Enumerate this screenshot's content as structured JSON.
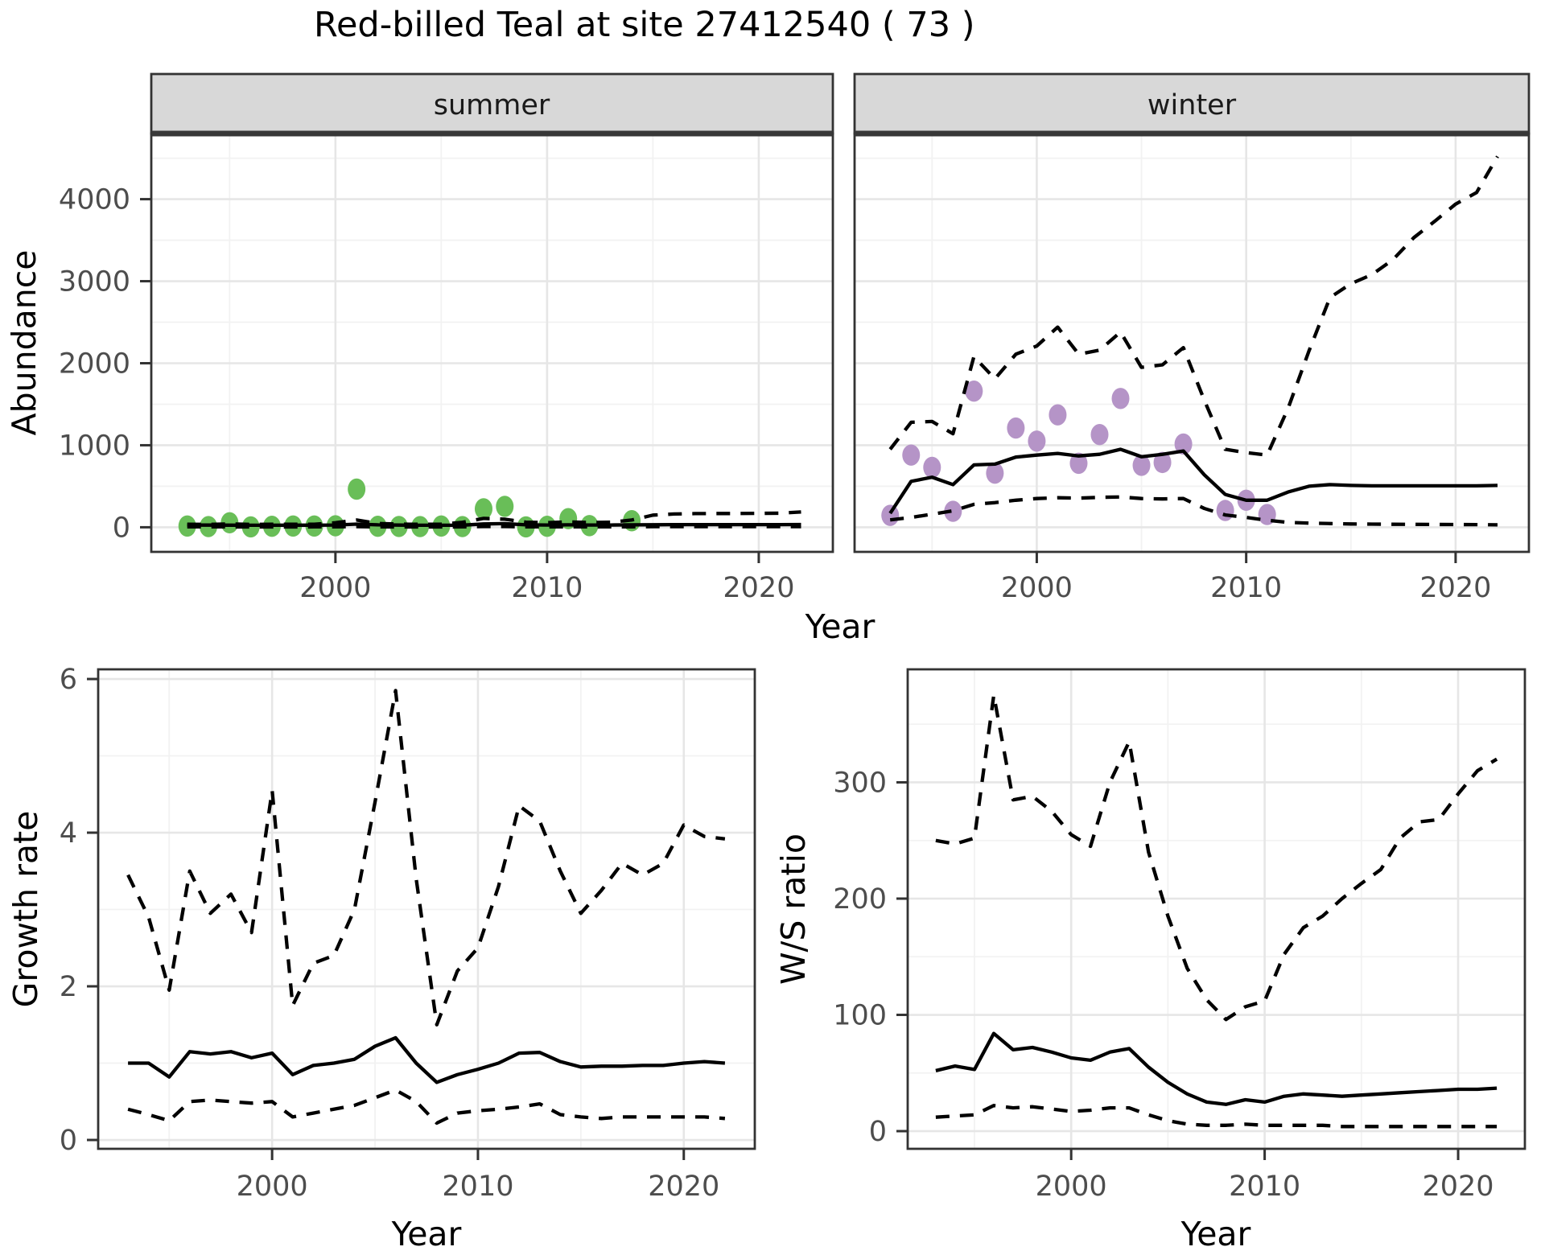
{
  "title": "Red-billed Teal at site 27412540 ( 73 )",
  "facets": [
    "summer",
    "winter"
  ],
  "axes": {
    "abundance_label": "Abundance",
    "growth_label": "Growth rate",
    "ws_label": "W/S ratio",
    "year_label_top": "Year",
    "year_label_bottom_left": "Year",
    "year_label_bottom_right": "Year"
  },
  "colors": {
    "summer_point": "#69BE58",
    "winter_point": "#B594C7",
    "line": "#000000",
    "strip_fill": "#D8D8D8",
    "strip_border": "#333333",
    "panel_border": "#333333",
    "grid_major": "#E6E6E6",
    "grid_minor": "#F2F2F2",
    "tick_mark": "#333333",
    "tick_label": "#4D4D4D"
  },
  "chart_data": [
    {
      "id": "abundance-summer",
      "type": "line",
      "facet": "summer",
      "title": "Abundance - summer facet",
      "xlabel": "Year",
      "ylabel": "Abundance",
      "xlim": [
        1991.3,
        2023.5
      ],
      "ylim": [
        -300,
        4800
      ],
      "xticks": [
        2000,
        2010,
        2020
      ],
      "xminor": [
        1995,
        2005,
        2015
      ],
      "yticks": [
        0,
        1000,
        2000,
        3000,
        4000
      ],
      "yminor": [
        500,
        1500,
        2500,
        3500,
        4500
      ],
      "x": [
        1993,
        1994,
        1995,
        1996,
        1997,
        1998,
        1999,
        2000,
        2001,
        2002,
        2003,
        2004,
        2005,
        2006,
        2007,
        2008,
        2009,
        2010,
        2011,
        2012,
        2013,
        2014,
        2015,
        2016,
        2017,
        2018,
        2019,
        2020,
        2021,
        2022
      ],
      "series": [
        {
          "name": "fitted",
          "style": "solid",
          "values": [
            28,
            27,
            26,
            25,
            25,
            26,
            26,
            28,
            38,
            30,
            27,
            25,
            25,
            26,
            40,
            44,
            30,
            28,
            30,
            28,
            28,
            30,
            31,
            32,
            32,
            32,
            32,
            32,
            32,
            33
          ]
        },
        {
          "name": "upper-ci",
          "style": "dashed",
          "values": [
            36,
            34,
            40,
            35,
            36,
            36,
            37,
            55,
            88,
            46,
            38,
            36,
            38,
            60,
            108,
            98,
            62,
            56,
            66,
            58,
            62,
            88,
            148,
            162,
            167,
            168,
            168,
            170,
            172,
            186
          ]
        },
        {
          "name": "lower-ci",
          "style": "dashed",
          "values": [
            5,
            5,
            5,
            4,
            4,
            4,
            5,
            5,
            8,
            5,
            4,
            4,
            4,
            5,
            9,
            9,
            5,
            5,
            6,
            5,
            5,
            6,
            8,
            8,
            8,
            8,
            8,
            8,
            8,
            8
          ]
        }
      ],
      "points": {
        "name": "observed-summer",
        "color_key": "summer_point",
        "x": [
          1993,
          1994,
          1995,
          1996,
          1997,
          1998,
          1999,
          2000,
          2001,
          2002,
          2003,
          2004,
          2005,
          2006,
          2007,
          2008,
          2009,
          2010,
          2011,
          2012,
          2014
        ],
        "y": [
          15,
          8,
          55,
          5,
          12,
          15,
          15,
          18,
          465,
          12,
          10,
          8,
          15,
          8,
          225,
          255,
          5,
          12,
          105,
          20,
          80
        ]
      }
    },
    {
      "id": "abundance-winter",
      "type": "line",
      "facet": "winter",
      "title": "Abundance - winter facet",
      "xlabel": "Year",
      "ylabel": "Abundance",
      "xlim": [
        1991.3,
        2023.5
      ],
      "ylim": [
        -300,
        4800
      ],
      "xticks": [
        2000,
        2010,
        2020
      ],
      "xminor": [
        1995,
        2005,
        2015
      ],
      "yticks": [
        0,
        1000,
        2000,
        3000,
        4000
      ],
      "yminor": [
        500,
        1500,
        2500,
        3500,
        4500
      ],
      "x": [
        1993,
        1994,
        1995,
        1996,
        1997,
        1998,
        1999,
        2000,
        2001,
        2002,
        2003,
        2004,
        2005,
        2006,
        2007,
        2008,
        2009,
        2010,
        2011,
        2012,
        2013,
        2014,
        2015,
        2016,
        2017,
        2018,
        2019,
        2020,
        2021,
        2022
      ],
      "series": [
        {
          "name": "fitted",
          "style": "solid",
          "values": [
            170,
            560,
            610,
            520,
            760,
            770,
            855,
            880,
            900,
            870,
            890,
            950,
            860,
            890,
            930,
            640,
            400,
            330,
            330,
            430,
            500,
            520,
            510,
            505,
            505,
            505,
            505,
            505,
            505,
            510
          ]
        },
        {
          "name": "upper-ci",
          "style": "dashed",
          "values": [
            950,
            1280,
            1290,
            1140,
            2080,
            1810,
            2110,
            2210,
            2440,
            2110,
            2160,
            2380,
            1950,
            1980,
            2190,
            1550,
            950,
            910,
            880,
            1450,
            2150,
            2800,
            2970,
            3080,
            3260,
            3530,
            3730,
            3940,
            4080,
            4520
          ]
        },
        {
          "name": "lower-ci",
          "style": "dashed",
          "values": [
            90,
            120,
            160,
            200,
            280,
            300,
            330,
            350,
            360,
            355,
            365,
            370,
            350,
            345,
            350,
            230,
            150,
            120,
            85,
            60,
            50,
            45,
            40,
            38,
            36,
            35,
            34,
            33,
            32,
            30
          ]
        }
      ],
      "points": {
        "name": "observed-winter",
        "color_key": "winter_point",
        "x": [
          1993,
          1994,
          1995,
          1996,
          1997,
          1998,
          1999,
          2000,
          2001,
          2002,
          2003,
          2004,
          2005,
          2006,
          2007,
          2009,
          2010,
          2011
        ],
        "y": [
          145,
          880,
          730,
          195,
          1660,
          660,
          1210,
          1050,
          1370,
          780,
          1130,
          1570,
          755,
          790,
          1015,
          205,
          330,
          155
        ]
      }
    },
    {
      "id": "growth-rate",
      "type": "line",
      "title": "Growth rate",
      "xlabel": "Year",
      "ylabel": "Growth rate",
      "xlim": [
        1991.55,
        2023.45
      ],
      "ylim": [
        -0.115,
        6.126
      ],
      "xticks": [
        2000,
        2010,
        2020
      ],
      "xminor": [
        1995,
        2005,
        2015
      ],
      "yticks": [
        0,
        2,
        4,
        6
      ],
      "yminor": [
        1,
        3,
        5
      ],
      "x": [
        1993,
        1994,
        1995,
        1996,
        1997,
        1998,
        1999,
        2000,
        2001,
        2002,
        2003,
        2004,
        2005,
        2006,
        2007,
        2008,
        2009,
        2010,
        2011,
        2012,
        2013,
        2014,
        2015,
        2016,
        2017,
        2018,
        2019,
        2020,
        2021,
        2022
      ],
      "series": [
        {
          "name": "fitted",
          "style": "solid",
          "values": [
            1.0,
            1.0,
            0.82,
            1.15,
            1.12,
            1.15,
            1.07,
            1.13,
            0.85,
            0.97,
            1.0,
            1.05,
            1.22,
            1.33,
            1.0,
            0.75,
            0.85,
            0.92,
            1.0,
            1.13,
            1.14,
            1.02,
            0.95,
            0.96,
            0.96,
            0.97,
            0.97,
            1.0,
            1.02,
            1.0
          ]
        },
        {
          "name": "upper-ci",
          "style": "dashed",
          "values": [
            3.45,
            2.9,
            1.95,
            3.5,
            2.95,
            3.2,
            2.7,
            4.55,
            1.75,
            2.3,
            2.4,
            3.0,
            4.4,
            5.85,
            3.4,
            1.5,
            2.2,
            2.5,
            3.3,
            4.35,
            4.15,
            3.5,
            2.95,
            3.25,
            3.6,
            3.45,
            3.6,
            4.1,
            3.95,
            3.92
          ]
        },
        {
          "name": "lower-ci",
          "style": "dashed",
          "values": [
            0.4,
            0.33,
            0.25,
            0.5,
            0.52,
            0.5,
            0.48,
            0.5,
            0.3,
            0.35,
            0.4,
            0.45,
            0.55,
            0.65,
            0.5,
            0.22,
            0.35,
            0.38,
            0.4,
            0.43,
            0.47,
            0.33,
            0.3,
            0.28,
            0.3,
            0.3,
            0.3,
            0.3,
            0.3,
            0.28
          ]
        }
      ]
    },
    {
      "id": "ws-ratio",
      "type": "line",
      "title": "W/S ratio",
      "xlabel": "Year",
      "ylabel": "W/S ratio",
      "xlim": [
        1991.55,
        2023.45
      ],
      "ylim": [
        -15.2,
        397.2
      ],
      "xticks": [
        2000,
        2010,
        2020
      ],
      "xminor": [
        1995,
        2005,
        2015
      ],
      "yticks": [
        0,
        100,
        200,
        300
      ],
      "yminor": [
        50,
        150,
        250,
        350
      ],
      "x": [
        1993,
        1994,
        1995,
        1996,
        1997,
        1998,
        1999,
        2000,
        2001,
        2002,
        2003,
        2004,
        2005,
        2006,
        2007,
        2008,
        2009,
        2010,
        2011,
        2012,
        2013,
        2014,
        2015,
        2016,
        2017,
        2018,
        2019,
        2020,
        2021,
        2022
      ],
      "series": [
        {
          "name": "fitted",
          "style": "solid",
          "values": [
            52,
            56,
            53,
            84,
            70,
            72,
            68,
            63,
            61,
            68,
            71,
            55,
            42,
            32,
            25,
            23,
            27,
            25,
            30,
            32,
            31,
            30,
            31,
            32,
            33,
            34,
            35,
            36,
            36,
            37
          ]
        },
        {
          "name": "upper-ci",
          "style": "dashed",
          "values": [
            250,
            247,
            252,
            375,
            285,
            288,
            275,
            255,
            245,
            300,
            335,
            240,
            185,
            140,
            113,
            96,
            107,
            112,
            152,
            175,
            185,
            200,
            213,
            225,
            252,
            266,
            268,
            290,
            310,
            320
          ]
        },
        {
          "name": "lower-ci",
          "style": "dashed",
          "values": [
            12,
            13,
            14,
            22,
            20,
            21,
            19,
            17,
            18,
            20,
            20,
            14,
            9,
            6,
            5,
            5,
            6,
            5,
            5,
            5,
            5,
            4,
            4,
            4,
            4,
            4,
            4,
            4,
            4,
            4
          ]
        }
      ]
    }
  ]
}
